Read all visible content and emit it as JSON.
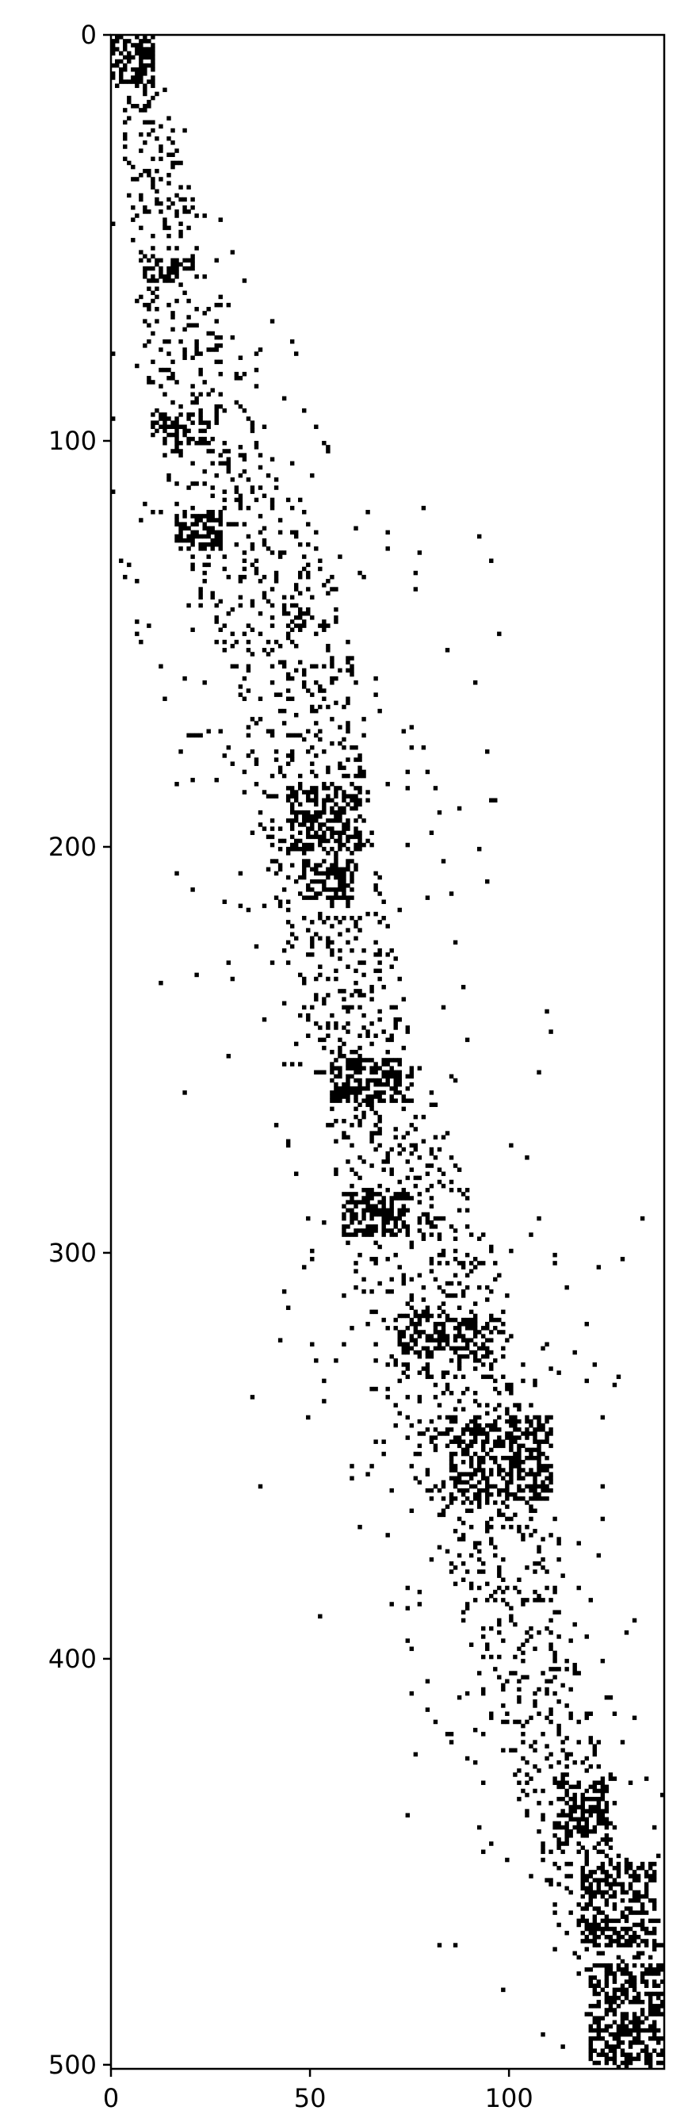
{
  "chart_data": {
    "type": "heatmap",
    "subtype": "sparsity-pattern",
    "title": "",
    "xlabel": "",
    "ylabel": "",
    "xlim": [
      0,
      139
    ],
    "ylim": [
      501,
      0
    ],
    "y_axis_inverted": true,
    "x_ticks": [
      0,
      50,
      100
    ],
    "y_ticks": [
      0,
      100,
      200,
      300,
      400,
      500
    ],
    "x_tick_labels": [
      "0",
      "50",
      "100"
    ],
    "y_tick_labels": [
      "0",
      "100",
      "200",
      "300",
      "400",
      "500"
    ],
    "grid": false,
    "legend": "none",
    "colors": {
      "nonzero": "#000000",
      "zero": "#ffffff",
      "axes": "#000000"
    },
    "matrix": {
      "rows": 501,
      "cols": 139
    },
    "band_center_by_row": [
      [
        0,
        4
      ],
      [
        30,
        10
      ],
      [
        60,
        16
      ],
      [
        100,
        25
      ],
      [
        130,
        37
      ],
      [
        170,
        48
      ],
      [
        200,
        52
      ],
      [
        240,
        60
      ],
      [
        280,
        72
      ],
      [
        300,
        78
      ],
      [
        340,
        87
      ],
      [
        360,
        94
      ],
      [
        400,
        104
      ],
      [
        420,
        110
      ],
      [
        450,
        120
      ],
      [
        480,
        130
      ],
      [
        501,
        136
      ]
    ],
    "band_halfwidth_by_row": [
      [
        0,
        3
      ],
      [
        20,
        6
      ],
      [
        60,
        10
      ],
      [
        100,
        15
      ],
      [
        130,
        18
      ],
      [
        200,
        14
      ],
      [
        260,
        14
      ],
      [
        300,
        18
      ],
      [
        350,
        17
      ],
      [
        400,
        14
      ],
      [
        440,
        12
      ],
      [
        480,
        14
      ],
      [
        501,
        12
      ]
    ],
    "dense_blocks": [
      {
        "rows": [
          0,
          12
        ],
        "cols": [
          0,
          10
        ]
      },
      {
        "rows": [
          55,
          60
        ],
        "cols": [
          8,
          18
        ]
      },
      {
        "rows": [
          93,
          100
        ],
        "cols": [
          10,
          24
        ]
      },
      {
        "rows": [
          118,
          126
        ],
        "cols": [
          16,
          27
        ]
      },
      {
        "rows": [
          185,
          200
        ],
        "cols": [
          45,
          62
        ]
      },
      {
        "rows": [
          203,
          212
        ],
        "cols": [
          48,
          60
        ]
      },
      {
        "rows": [
          252,
          262
        ],
        "cols": [
          55,
          72
        ]
      },
      {
        "rows": [
          285,
          295
        ],
        "cols": [
          58,
          74
        ]
      },
      {
        "rows": [
          315,
          325
        ],
        "cols": [
          72,
          95
        ]
      },
      {
        "rows": [
          340,
          360
        ],
        "cols": [
          85,
          110
        ]
      },
      {
        "rows": [
          430,
          445
        ],
        "cols": [
          112,
          124
        ]
      },
      {
        "rows": [
          450,
          470
        ],
        "cols": [
          118,
          136
        ]
      },
      {
        "rows": [
          475,
          499
        ],
        "cols": [
          120,
          139
        ]
      }
    ]
  }
}
